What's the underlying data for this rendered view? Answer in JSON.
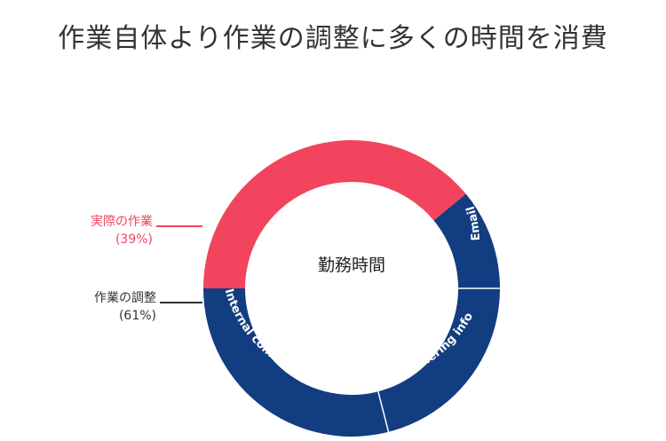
{
  "title": "作業自体より作業の調整に多くの時間を消費",
  "colors": {
    "actual_work": "#f2445e",
    "coordination": "#123d80",
    "text": "#333333",
    "separator": "#ffffff"
  },
  "chart_data": {
    "type": "pie",
    "center_label": "勤務時間",
    "slices": [
      {
        "label": "実際の作業",
        "percent_label": "(39%)",
        "value": 39,
        "color": "#f2445e"
      },
      {
        "label": "作業の調整",
        "percent_label": "(61%)",
        "value": 61,
        "color": "#123d80"
      }
    ],
    "coordination_breakdown": [
      {
        "label": "Email",
        "value": 11
      },
      {
        "label": "Gathering info",
        "value": 21
      },
      {
        "label": "Internal communication",
        "value": 29
      }
    ]
  }
}
